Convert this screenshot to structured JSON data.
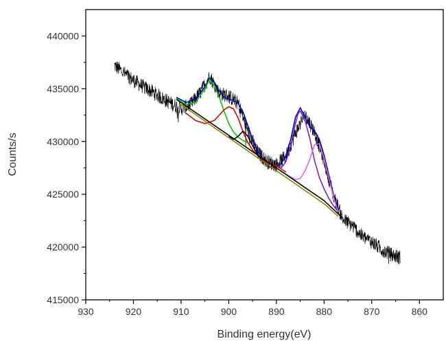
{
  "chart_data": {
    "type": "line",
    "title": "",
    "xlabel": "Binding energy(eV)",
    "ylabel": "Counts/s",
    "xlim": [
      930,
      855
    ],
    "ylim": [
      415000,
      442500
    ],
    "x_reversed": true,
    "grid": false,
    "x_ticks": [
      930,
      920,
      910,
      900,
      890,
      880,
      870,
      860
    ],
    "y_ticks": [
      415000,
      420000,
      425000,
      430000,
      435000,
      440000
    ],
    "raw_spectrum": {
      "color": "#000000",
      "x": [
        924,
        922,
        920,
        918,
        916,
        914,
        912,
        910,
        908,
        906,
        904,
        902,
        900,
        898,
        896,
        894,
        892,
        890,
        888,
        886,
        884,
        882,
        880,
        878,
        876,
        874,
        872,
        870,
        868,
        866,
        864
      ],
      "y": [
        437200,
        436500,
        435800,
        435200,
        434700,
        434100,
        433600,
        433100,
        433500,
        434600,
        436200,
        434600,
        434300,
        433600,
        431000,
        429000,
        428100,
        427800,
        428600,
        430800,
        432600,
        430900,
        428200,
        424800,
        422600,
        422000,
        421000,
        420500,
        419800,
        419300,
        419000
      ],
      "noise_amplitude": 700
    },
    "series": [
      {
        "color": "#0000cc",
        "x": [
          911,
          909,
          907,
          905,
          904,
          903,
          902,
          901,
          900,
          899,
          898,
          897,
          896,
          895,
          894,
          893,
          892,
          891,
          890,
          889,
          888,
          887,
          886,
          885,
          884,
          883,
          882,
          881,
          880,
          879,
          878,
          877
        ],
        "y": [
          434200,
          433700,
          434000,
          435200,
          436000,
          435600,
          434800,
          434200,
          434000,
          433900,
          433600,
          432800,
          431500,
          430200,
          429100,
          428500,
          428100,
          427800,
          427700,
          427900,
          428700,
          430200,
          432300,
          433200,
          432300,
          431400,
          431000,
          430200,
          428700,
          426800,
          424900,
          423400
        ]
      },
      {
        "color": "#00cc00",
        "x": [
          911,
          909,
          907,
          905,
          904,
          903,
          902,
          901,
          900,
          899,
          898,
          897,
          896
        ],
        "y": [
          434100,
          433500,
          433700,
          435000,
          435900,
          435300,
          434200,
          432900,
          431700,
          430900,
          430400,
          430100,
          429900
        ]
      },
      {
        "color": "#dd0000",
        "x": [
          909,
          907,
          905,
          903,
          901,
          900,
          899,
          898,
          897,
          896,
          895,
          894,
          893,
          892,
          891,
          890,
          889,
          888
        ],
        "y": [
          432700,
          432000,
          431700,
          432000,
          433000,
          433300,
          433100,
          432200,
          430900,
          429900,
          429200,
          428700,
          428300,
          428000,
          427800,
          427700,
          427400,
          427100
        ]
      },
      {
        "color": "#000000",
        "x": [
          900,
          899,
          898,
          897,
          896,
          895,
          894,
          893,
          892,
          891,
          890
        ],
        "y": [
          430500,
          430200,
          430500,
          431000,
          430500,
          429600,
          428800,
          428200,
          427800,
          427500,
          427300
        ]
      },
      {
        "color": "#7a1fd6",
        "x": [
          889,
          888,
          887,
          886,
          885.5,
          885,
          884,
          883,
          882,
          881,
          880,
          879,
          878,
          877
        ],
        "y": [
          427500,
          428100,
          429600,
          431700,
          432600,
          432900,
          432000,
          430300,
          428200,
          426600,
          425500,
          424600,
          423900,
          423300
        ]
      },
      {
        "color": "#e066e6",
        "x": [
          890,
          888,
          886,
          885,
          884,
          883,
          882,
          881,
          880,
          879,
          878,
          877
        ],
        "y": [
          427500,
          426900,
          426400,
          426500,
          427200,
          428300,
          429700,
          429800,
          428400,
          426500,
          424700,
          423300
        ]
      },
      {
        "color": "#8a8a00",
        "x": [
          910,
          880,
          877
        ],
        "y": [
          433500,
          424100,
          422900
        ]
      },
      {
        "color": "#000000",
        "x": [
          911,
          880,
          876
        ],
        "y": [
          434000,
          424400,
          422700
        ]
      }
    ]
  }
}
